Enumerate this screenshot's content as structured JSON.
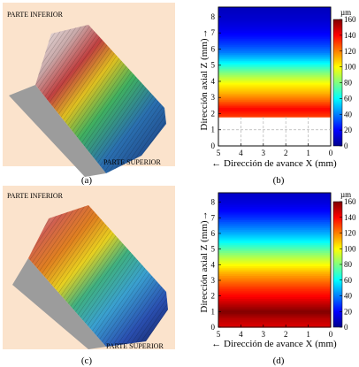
{
  "panels": {
    "a": {
      "label": "(a)",
      "top_text": "PARTE INFERIOR",
      "bottom_text": "PARTE SUPERIOR"
    },
    "b": {
      "label": "(b)"
    },
    "c": {
      "label": "(c)",
      "top_text": "PARTE INFERIOR",
      "bottom_text": "PARTE SUPERIOR"
    },
    "d": {
      "label": "(d)"
    }
  },
  "colors": {
    "surface_bg": "#fbe3cc",
    "wall_gray": "#9c9c9c",
    "grid_dash": "#b0b0b0"
  },
  "chart_data": [
    {
      "type": "heatmap",
      "panel": "b",
      "xlabel": "← Dirección de avance X (mm)",
      "ylabel": "Dirección axial Z (mm)→",
      "xlim": [
        5,
        0
      ],
      "ylim": [
        0,
        8.6
      ],
      "xticks": [
        "5",
        "4",
        "3",
        "2",
        "1",
        "0"
      ],
      "yticks": [
        "0",
        "1",
        "2",
        "3",
        "4",
        "5",
        "6",
        "7",
        "8"
      ],
      "colorbar_unit": "µm",
      "colorbar_ticks": [
        "0",
        "20",
        "40",
        "60",
        "80",
        "100",
        "120",
        "140",
        "160"
      ],
      "clim": [
        0,
        160
      ],
      "filled_z_range": [
        1.8,
        8.6
      ],
      "grid": "dashed below filled region",
      "profile": {
        "z": [
          1.8,
          2.3,
          2.8,
          3.3,
          3.8,
          4.3,
          4.8,
          5.3,
          5.8,
          6.3,
          6.8,
          7.3,
          7.8,
          8.6
        ],
        "value": [
          130,
          140,
          125,
          112,
          102,
          88,
          72,
          55,
          40,
          30,
          22,
          16,
          12,
          8
        ]
      }
    },
    {
      "type": "heatmap",
      "panel": "d",
      "xlabel": "← Dirección de avance X (mm)",
      "ylabel": "Dirección axial Z (mm)→",
      "xlim": [
        5,
        0
      ],
      "ylim": [
        0,
        8.6
      ],
      "xticks": [
        "5",
        "4",
        "3",
        "2",
        "1",
        "0"
      ],
      "yticks": [
        "0",
        "1",
        "2",
        "3",
        "4",
        "5",
        "6",
        "7",
        "8"
      ],
      "colorbar_unit": "µm",
      "colorbar_ticks": [
        "0",
        "20",
        "40",
        "60",
        "80",
        "100",
        "120",
        "140",
        "160"
      ],
      "clim": [
        0,
        160
      ],
      "filled_z_range": [
        0,
        8.6
      ],
      "profile": {
        "z": [
          0,
          0.5,
          1.0,
          1.5,
          2.0,
          2.5,
          3.0,
          3.5,
          4.0,
          4.5,
          5.0,
          5.5,
          6.0,
          6.5,
          7.0,
          7.5,
          8.0,
          8.6
        ],
        "value": [
          145,
          150,
          160,
          150,
          140,
          132,
          122,
          112,
          100,
          88,
          74,
          60,
          48,
          38,
          28,
          20,
          14,
          10
        ]
      }
    }
  ]
}
